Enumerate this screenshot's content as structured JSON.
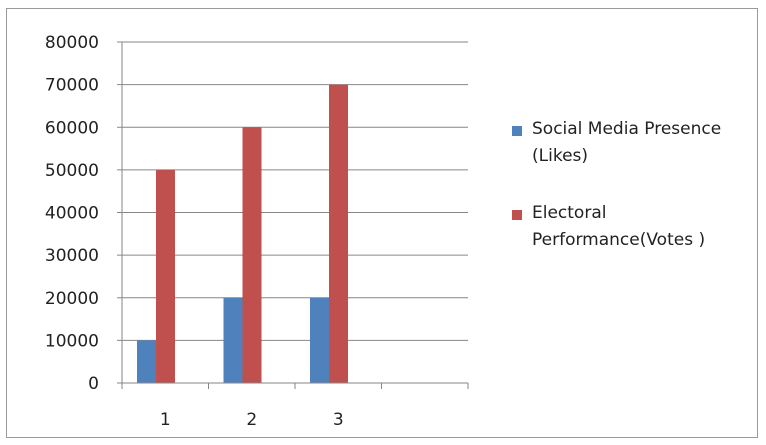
{
  "chart_data": {
    "type": "bar",
    "categories": [
      "1",
      "2",
      "3",
      ""
    ],
    "series": [
      {
        "name": "Social Media Presence (Likes)",
        "values": [
          10000,
          20000,
          20000,
          null
        ],
        "color": "#4f81bd"
      },
      {
        "name": "Electoral Performance(Votes )",
        "values": [
          50000,
          60000,
          70000,
          null
        ],
        "color": "#c0504d"
      }
    ],
    "title": "",
    "xlabel": "",
    "ylabel": "",
    "ylim": [
      0,
      80000
    ],
    "yticks": [
      "0",
      "10000",
      "20000",
      "30000",
      "40000",
      "50000",
      "60000",
      "70000",
      "80000"
    ],
    "grid": true,
    "legend_position": "right"
  }
}
